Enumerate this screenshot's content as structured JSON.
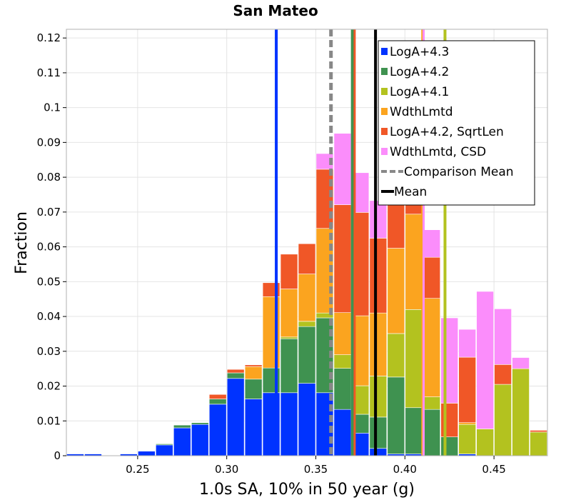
{
  "chart_data": {
    "type": "bar",
    "stacked": true,
    "title": "San Mateo",
    "xlabel": "1.0s SA, 10% in 50 year (g)",
    "ylabel": "Fraction",
    "xlim": [
      0.21,
      0.48
    ],
    "ylim": [
      0,
      0.1225
    ],
    "bin_width": 0.01,
    "grid": true,
    "legend_position": "top-right",
    "x_ticks": [
      0.25,
      0.3,
      0.35,
      0.4,
      0.45
    ],
    "x_tick_labels": [
      "0.25",
      "0.30",
      "0.35",
      "0.40",
      "0.45"
    ],
    "y_ticks": [
      0,
      0.01,
      0.02,
      0.03,
      0.04,
      0.05,
      0.06,
      0.07,
      0.08,
      0.09,
      0.1,
      0.11,
      0.12
    ],
    "y_tick_labels": [
      "0",
      "0.01",
      "0.02",
      "0.03",
      "0.04",
      "0.05",
      "0.06",
      "0.07",
      "0.08",
      "0.09",
      "0.1",
      "0.11",
      "0.12"
    ],
    "x": [
      0.215,
      0.225,
      0.235,
      0.245,
      0.255,
      0.265,
      0.275,
      0.285,
      0.295,
      0.305,
      0.315,
      0.325,
      0.335,
      0.345,
      0.355,
      0.365,
      0.375,
      0.385,
      0.395,
      0.405,
      0.415,
      0.425,
      0.435,
      0.445,
      0.455,
      0.465,
      0.475
    ],
    "series": [
      {
        "name": "LogA+4.3",
        "color": "#0033ff",
        "values": [
          0.0005,
          0.0005,
          0.0,
          0.0005,
          0.0013,
          0.0031,
          0.008,
          0.009,
          0.0148,
          0.0222,
          0.0163,
          0.0181,
          0.0181,
          0.0208,
          0.0181,
          0.0133,
          0.0065,
          0.0021,
          0.0005,
          0.0005,
          0.0,
          0.0,
          0.0005,
          0.0,
          0.0,
          0.0,
          0.0
        ]
      },
      {
        "name": "LogA+4.2",
        "color": "#3f9250",
        "values": [
          0.0,
          0.0,
          0.0,
          0.0,
          0.0,
          0.0003,
          0.0008,
          0.0005,
          0.0015,
          0.0016,
          0.0057,
          0.0071,
          0.0155,
          0.0163,
          0.0215,
          0.0118,
          0.0054,
          0.009,
          0.0221,
          0.0133,
          0.0133,
          0.0054,
          0.0,
          0.0,
          0.0,
          0.0,
          0.0
        ]
      },
      {
        "name": "LogA+4.1",
        "color": "#b3c21f",
        "values": [
          0.0,
          0.0,
          0.0,
          0.0,
          0.0,
          0.0,
          0.0,
          0.0,
          0.0,
          0.0,
          0.0,
          0.0,
          0.0005,
          0.0015,
          0.0014,
          0.0039,
          0.0082,
          0.0118,
          0.0125,
          0.0282,
          0.0036,
          0.0,
          0.0085,
          0.0077,
          0.0205,
          0.025,
          0.0068
        ]
      },
      {
        "name": "WdthLmtd",
        "color": "#fba41f",
        "values": [
          0.0,
          0.0,
          0.0,
          0.0,
          0.0,
          0.0,
          0.0,
          0.0,
          0.0,
          0.0,
          0.0036,
          0.0205,
          0.0138,
          0.0136,
          0.0243,
          0.0121,
          0.0201,
          0.0181,
          0.0245,
          0.0274,
          0.0283,
          0.0,
          0.0005,
          0.0,
          0.0,
          0.0,
          0.0
        ]
      },
      {
        "name": "LogA+4.2, SqrtLen",
        "color": "#f05727",
        "values": [
          0.0,
          0.0,
          0.0,
          0.0,
          0.0,
          0.0,
          0.0,
          0.0,
          0.0013,
          0.001,
          0.0005,
          0.004,
          0.01,
          0.0087,
          0.017,
          0.031,
          0.0297,
          0.0215,
          0.0246,
          0.0073,
          0.0118,
          0.0097,
          0.0188,
          0.0,
          0.0057,
          0.0,
          0.0005
        ]
      },
      {
        "name": "WdthLmtd, CSD",
        "color": "#fb8dfb",
        "values": [
          0.0,
          0.0,
          0.0,
          0.0,
          0.0,
          0.0,
          0.0,
          0.0,
          0.0,
          0.0,
          0.0,
          0.0,
          0.0,
          0.0,
          0.0045,
          0.0205,
          0.0114,
          0.0108,
          0.0163,
          0.0185,
          0.0079,
          0.0245,
          0.008,
          0.0395,
          0.016,
          0.0032,
          0.0
        ]
      }
    ],
    "vertical_lines": [
      {
        "name": "LogA+4.3 mean",
        "x": 0.3278,
        "color": "#0033ff",
        "style": "solid",
        "width": 4
      },
      {
        "name": "Comparison Mean",
        "x": 0.3585,
        "color": "#888888",
        "style": "dashed",
        "width": 5
      },
      {
        "name": "LogA+4.2 mean",
        "x": 0.3705,
        "color": "#3f9250",
        "style": "solid",
        "width": 4
      },
      {
        "name": "LogA+4.2, SqrtLen mean",
        "x": 0.3718,
        "color": "#f05727",
        "style": "solid",
        "width": 3
      },
      {
        "name": "Mean",
        "x": 0.3835,
        "color": "#000000",
        "style": "solid",
        "width": 4
      },
      {
        "name": "WdthLmtd mean",
        "x": 0.4098,
        "color": "#fba41f",
        "style": "solid",
        "width": 3
      },
      {
        "name": "WdthLmtd, CSD mean",
        "x": 0.4105,
        "color": "#fb8dfb",
        "style": "solid",
        "width": 3
      },
      {
        "name": "LogA+4.1 mean",
        "x": 0.4225,
        "color": "#b3c21f",
        "style": "solid",
        "width": 4
      }
    ],
    "legend": [
      {
        "label": "LogA+4.3",
        "color": "#0033ff",
        "kind": "box"
      },
      {
        "label": "LogA+4.2",
        "color": "#3f9250",
        "kind": "box"
      },
      {
        "label": "LogA+4.1",
        "color": "#b3c21f",
        "kind": "box"
      },
      {
        "label": "WdthLmtd",
        "color": "#fba41f",
        "kind": "box"
      },
      {
        "label": "LogA+4.2, SqrtLen",
        "color": "#f05727",
        "kind": "box"
      },
      {
        "label": "WdthLmtd, CSD",
        "color": "#fb8dfb",
        "kind": "box"
      },
      {
        "label": "Comparison Mean",
        "color": "#888888",
        "kind": "dash"
      },
      {
        "label": "Mean",
        "color": "#000000",
        "kind": "line"
      }
    ]
  }
}
